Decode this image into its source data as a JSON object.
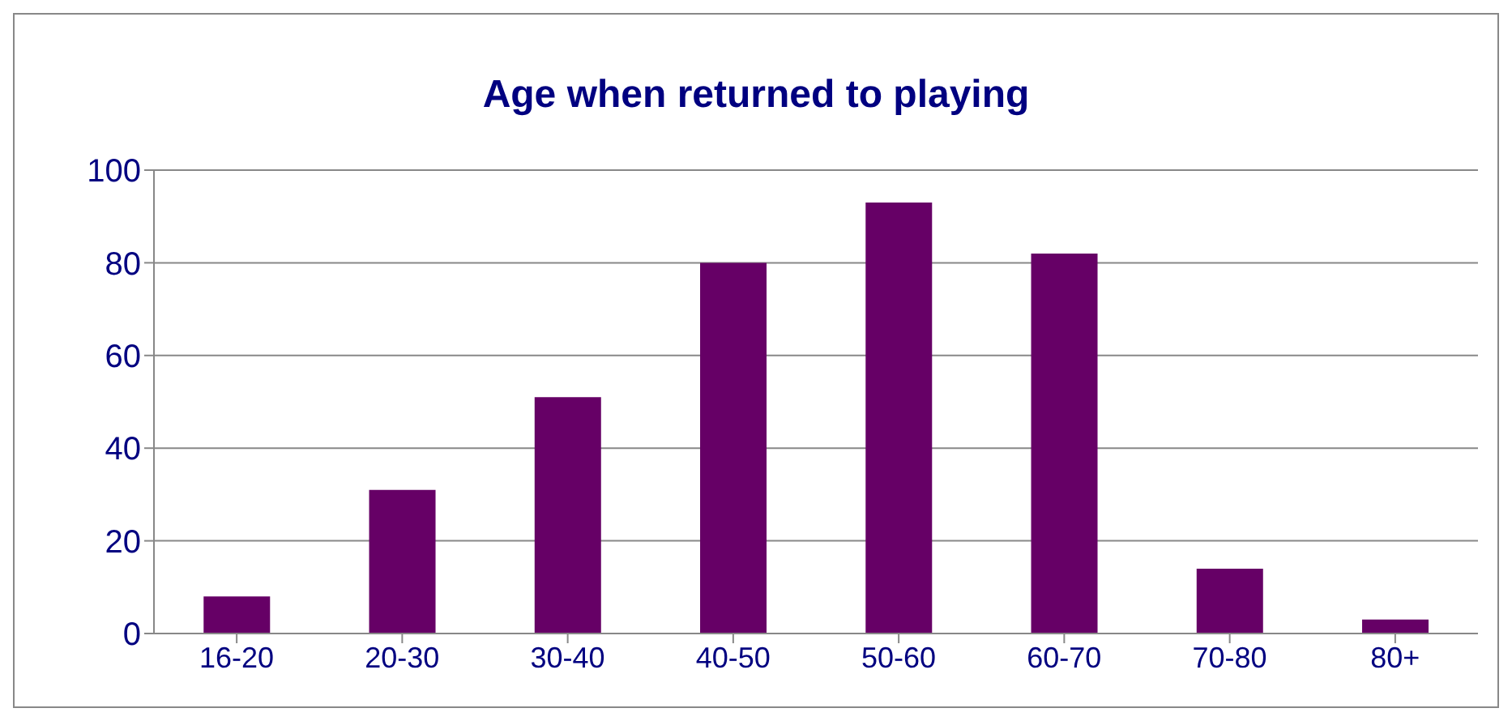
{
  "chart_data": {
    "type": "bar",
    "title": "Age when returned to playing",
    "categories": [
      "16-20",
      "20-30",
      "30-40",
      "40-50",
      "50-60",
      "60-70",
      "70-80",
      "80+"
    ],
    "values": [
      8,
      31,
      51,
      80,
      93,
      82,
      14,
      3
    ],
    "color": "#660066",
    "ylim": [
      0,
      100
    ],
    "yticks": [
      0,
      20,
      40,
      60,
      80,
      100
    ],
    "grid": "y"
  }
}
